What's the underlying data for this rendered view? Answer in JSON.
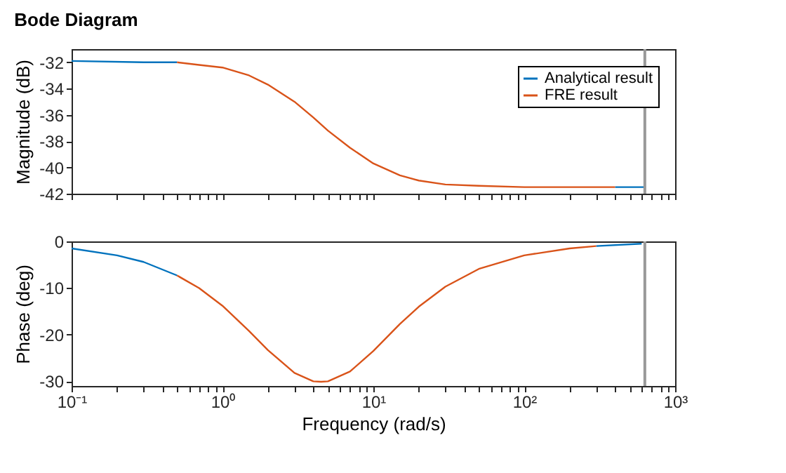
{
  "chart_data": [
    {
      "type": "line",
      "title": "Bode Diagram",
      "ylabel": "Magnitude (dB)",
      "log": "x",
      "legend": "top right",
      "grid": false,
      "tick_labels": "y",
      "xlim": [
        0.1,
        1000
      ],
      "xticks": [
        {
          "value": 0.1,
          "label": null
        },
        {
          "value": 0.2,
          "label": null
        },
        {
          "value": 0.3,
          "label": null
        },
        {
          "value": 0.4,
          "label": null
        },
        {
          "value": 0.5,
          "label": null
        },
        {
          "value": 0.6,
          "label": null
        },
        {
          "value": 0.7,
          "label": null
        },
        {
          "value": 0.8,
          "label": null
        },
        {
          "value": 0.9,
          "label": null
        },
        {
          "value": 1,
          "label": null
        },
        {
          "value": 2,
          "label": null
        },
        {
          "value": 3,
          "label": null
        },
        {
          "value": 4,
          "label": null
        },
        {
          "value": 5,
          "label": null
        },
        {
          "value": 6,
          "label": null
        },
        {
          "value": 7,
          "label": null
        },
        {
          "value": 8,
          "label": null
        },
        {
          "value": 9,
          "label": null
        },
        {
          "value": 10,
          "label": null
        },
        {
          "value": 20,
          "label": null
        },
        {
          "value": 30,
          "label": null
        },
        {
          "value": 40,
          "label": null
        },
        {
          "value": 50,
          "label": null
        },
        {
          "value": 60,
          "label": null
        },
        {
          "value": 70,
          "label": null
        },
        {
          "value": 80,
          "label": null
        },
        {
          "value": 90,
          "label": null
        },
        {
          "value": 100,
          "label": null
        },
        {
          "value": 200,
          "label": null
        },
        {
          "value": 300,
          "label": null
        },
        {
          "value": 400,
          "label": null
        },
        {
          "value": 500,
          "label": null
        },
        {
          "value": 600,
          "label": null
        },
        {
          "value": 700,
          "label": null
        },
        {
          "value": 800,
          "label": null
        },
        {
          "value": 900,
          "label": null
        },
        {
          "value": 1000,
          "label": null
        }
      ],
      "ylim": [
        -42,
        -31
      ],
      "yticks": [
        -42,
        -40,
        -38,
        -36,
        -34,
        -32
      ],
      "ref_lines": [
        {
          "axis": "x",
          "value": 630,
          "color": "#999999"
        }
      ],
      "series": [
        {
          "name": "Analytical result",
          "color": "#0072bd",
          "x": [
            0.1,
            0.3,
            0.5,
            0.7,
            100,
            400,
            630
          ],
          "values": [
            -31.9,
            -32.0,
            -32.0,
            null,
            null,
            -41.5,
            -41.5
          ]
        },
        {
          "name": "FRE result",
          "color": "#d95319",
          "x": [
            0.5,
            0.7,
            1,
            1.5,
            2,
            3,
            4,
            5,
            7,
            10,
            15,
            20,
            30,
            50,
            100,
            200,
            400
          ],
          "values": [
            -32.0,
            -32.2,
            -32.4,
            -33.0,
            -33.7,
            -35.0,
            -36.2,
            -37.2,
            -38.5,
            -39.7,
            -40.6,
            -41.0,
            -41.3,
            -41.4,
            -41.5,
            -41.5,
            -41.5
          ]
        }
      ]
    },
    {
      "type": "line",
      "xlabel": "Frequency (rad/s)",
      "ylabel": "Phase (deg)",
      "log": "x",
      "grid": false,
      "xlim": [
        0.1,
        1000
      ],
      "xticks": [
        {
          "value": 0.1,
          "label": "10⁻¹"
        },
        {
          "value": 0.2,
          "label": null
        },
        {
          "value": 0.3,
          "label": null
        },
        {
          "value": 0.4,
          "label": null
        },
        {
          "value": 0.5,
          "label": null
        },
        {
          "value": 0.6,
          "label": null
        },
        {
          "value": 0.7,
          "label": null
        },
        {
          "value": 0.8,
          "label": null
        },
        {
          "value": 0.9,
          "label": null
        },
        {
          "value": 1,
          "label": "10⁰"
        },
        {
          "value": 2,
          "label": null
        },
        {
          "value": 3,
          "label": null
        },
        {
          "value": 4,
          "label": null
        },
        {
          "value": 5,
          "label": null
        },
        {
          "value": 6,
          "label": null
        },
        {
          "value": 7,
          "label": null
        },
        {
          "value": 8,
          "label": null
        },
        {
          "value": 9,
          "label": null
        },
        {
          "value": 10,
          "label": "10¹"
        },
        {
          "value": 20,
          "label": null
        },
        {
          "value": 30,
          "label": null
        },
        {
          "value": 40,
          "label": null
        },
        {
          "value": 50,
          "label": null
        },
        {
          "value": 60,
          "label": null
        },
        {
          "value": 70,
          "label": null
        },
        {
          "value": 80,
          "label": null
        },
        {
          "value": 90,
          "label": null
        },
        {
          "value": 100,
          "label": "10²"
        },
        {
          "value": 200,
          "label": null
        },
        {
          "value": 300,
          "label": null
        },
        {
          "value": 400,
          "label": null
        },
        {
          "value": 500,
          "label": null
        },
        {
          "value": 600,
          "label": null
        },
        {
          "value": 700,
          "label": null
        },
        {
          "value": 800,
          "label": null
        },
        {
          "value": 900,
          "label": null
        },
        {
          "value": 1000,
          "label": "10³"
        }
      ],
      "ylim": [
        -31,
        0
      ],
      "yticks": [
        -30,
        -20,
        -10,
        0
      ],
      "ref_lines": [
        {
          "axis": "x",
          "value": 630,
          "color": "#999999"
        }
      ],
      "series": [
        {
          "color": "#0072bd",
          "x": [
            0.1,
            0.2,
            0.3,
            0.5,
            0.7,
            100,
            300,
            600
          ],
          "values": [
            -1.5,
            -3.0,
            -4.4,
            -7.3,
            null,
            null,
            -1.0,
            -0.5
          ]
        },
        {
          "color": "#d95319",
          "x": [
            0.5,
            0.7,
            1,
            1.5,
            2,
            3,
            4,
            4.5,
            5,
            7,
            10,
            15,
            20,
            30,
            50,
            100,
            200,
            300
          ],
          "values": [
            -7.3,
            -10.0,
            -13.8,
            -19.2,
            -23.3,
            -28.2,
            -30.0,
            -30.1,
            -30.0,
            -27.9,
            -23.5,
            -17.7,
            -14.0,
            -9.7,
            -5.9,
            -3.0,
            -1.5,
            -1.0
          ]
        }
      ]
    }
  ]
}
